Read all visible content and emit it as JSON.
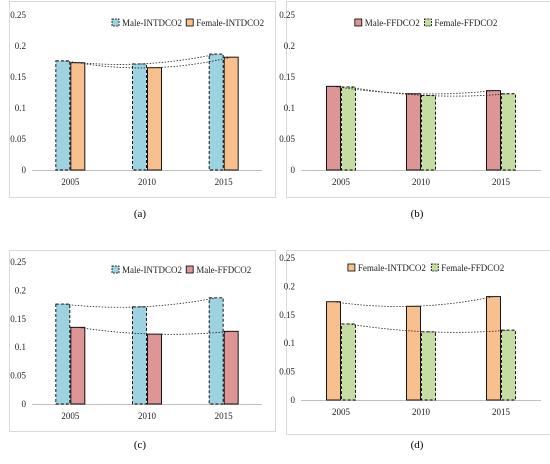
{
  "chart_data": [
    {
      "type": "bar",
      "panel_label": "(a)",
      "categories": [
        "2005",
        "2010",
        "2015"
      ],
      "ylim": [
        0,
        0.25
      ],
      "yticks": [
        "0",
        "0.05",
        "0.1",
        "0.15",
        "0.2",
        "0.25"
      ],
      "legend_position": "top-right",
      "trendline": "polynomial dotted",
      "series": [
        {
          "name": "Male-INTDCO2",
          "values": [
            0.176,
            0.171,
            0.187
          ],
          "fill": "#9dd3e1",
          "dashed": true
        },
        {
          "name": "Female-INTDCO2",
          "values": [
            0.173,
            0.165,
            0.182
          ],
          "fill": "#f8c08f",
          "dashed": false
        }
      ]
    },
    {
      "type": "bar",
      "panel_label": "(b)",
      "categories": [
        "2005",
        "2010",
        "2015"
      ],
      "ylim": [
        0,
        0.25
      ],
      "yticks": [
        "0",
        "0.05",
        "0.1",
        "0.15",
        "0.2",
        "0.25"
      ],
      "legend_position": "top-center",
      "trendline": "polynomial dotted",
      "series": [
        {
          "name": "Male-FFDCO2",
          "values": [
            0.135,
            0.123,
            0.128
          ],
          "fill": "#dd9596",
          "dashed": false
        },
        {
          "name": "Female-FFDCO2",
          "values": [
            0.134,
            0.12,
            0.123
          ],
          "fill": "#c5dca3",
          "dashed": true
        }
      ]
    },
    {
      "type": "bar",
      "panel_label": "(c)",
      "categories": [
        "2005",
        "2010",
        "2015"
      ],
      "ylim": [
        0,
        0.25
      ],
      "yticks": [
        "0",
        "0.05",
        "0.1",
        "0.15",
        "0.2",
        "0.25"
      ],
      "legend_position": "top-right",
      "trendline": "polynomial dotted",
      "series": [
        {
          "name": "Male-INTDCO2",
          "values": [
            0.176,
            0.171,
            0.187
          ],
          "fill": "#9dd3e1",
          "dashed": true
        },
        {
          "name": "Male-FFDCO2",
          "values": [
            0.135,
            0.123,
            0.128
          ],
          "fill": "#dd9596",
          "dashed": false
        }
      ]
    },
    {
      "type": "bar",
      "panel_label": "(d)",
      "categories": [
        "2005",
        "2010",
        "2015"
      ],
      "ylim": [
        0,
        0.25
      ],
      "yticks": [
        "0",
        "0.05",
        "0.1",
        "0.15",
        "0.2",
        "0.25"
      ],
      "legend_position": "top-center",
      "trendline": "polynomial dotted",
      "series": [
        {
          "name": "Female-INTDCO2",
          "values": [
            0.173,
            0.165,
            0.182
          ],
          "fill": "#f8c08f",
          "dashed": false
        },
        {
          "name": "Female-FFDCO2",
          "values": [
            0.134,
            0.12,
            0.123
          ],
          "fill": "#c5dca3",
          "dashed": true
        }
      ]
    }
  ]
}
